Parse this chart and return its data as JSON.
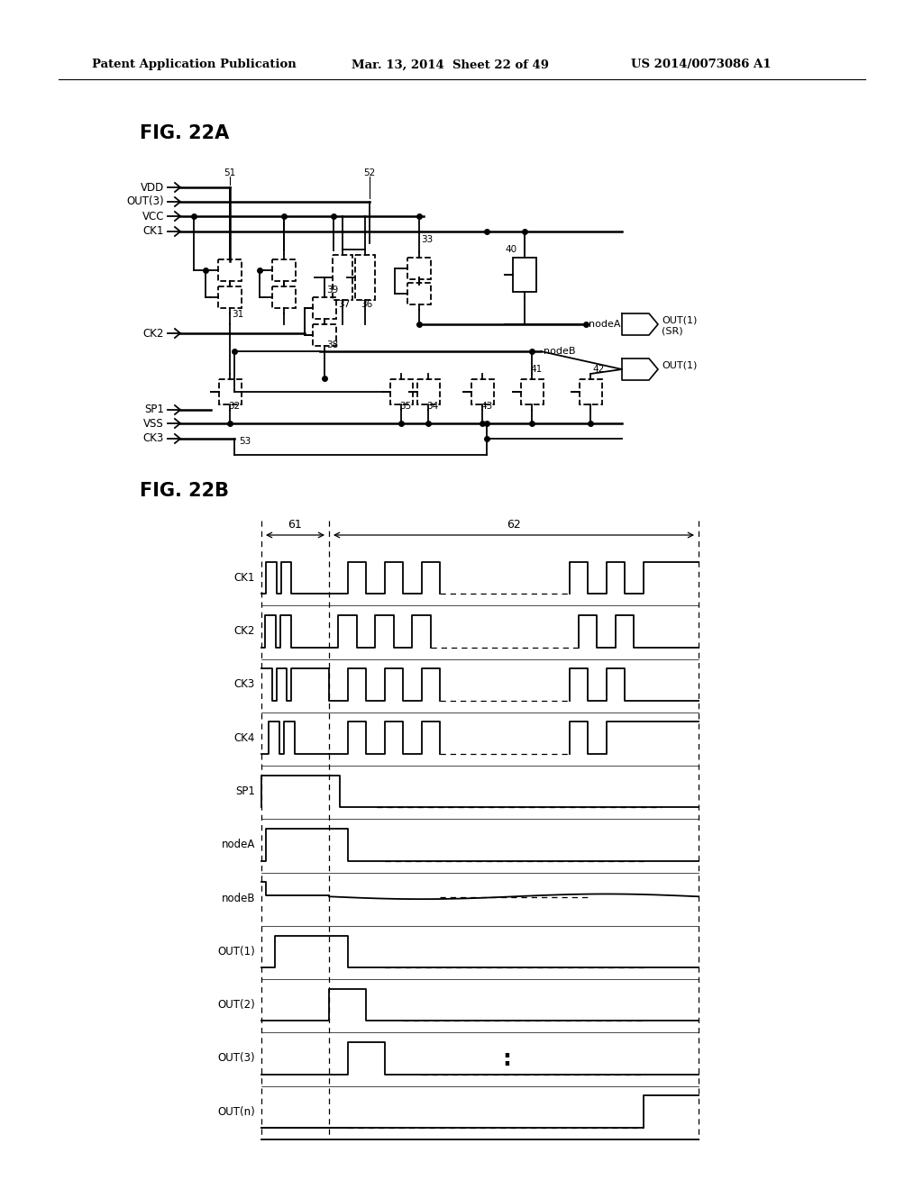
{
  "bg_color": "#ffffff",
  "header_left": "Patent Application Publication",
  "header_mid": "Mar. 13, 2014  Sheet 22 of 49",
  "header_right": "US 2014/0073086 A1",
  "fig22a_title": "FIG. 22A",
  "fig22b_title": "FIG. 22B",
  "timing_labels": [
    "CK1",
    "CK2",
    "CK3",
    "CK4",
    "SP1",
    "nodeA",
    "nodeB",
    "OUT(1)",
    "OUT(2)",
    "OUT(3)",
    "OUT(n)"
  ],
  "ckt_input_labels_top": [
    "VDD",
    "OUT(3)",
    "VCC",
    "CK1"
  ],
  "ckt_input_labels_mid": [
    "CK2"
  ],
  "ckt_input_labels_bot": [
    "SP1",
    "VSS",
    "CK3"
  ],
  "wire_nums": [
    "51",
    "52",
    "53"
  ],
  "transistor_nums": [
    "31",
    "32",
    "33",
    "34",
    "35",
    "36",
    "37",
    "38",
    "39",
    "40",
    "41",
    "42",
    "43"
  ]
}
